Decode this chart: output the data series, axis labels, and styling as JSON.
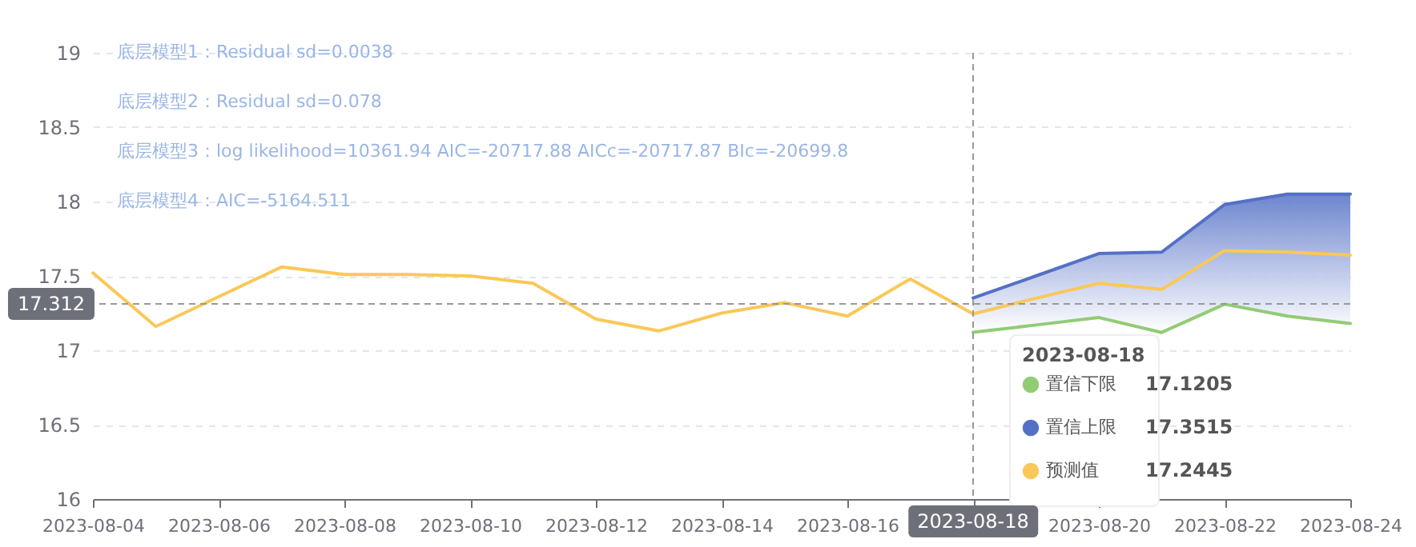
{
  "chart_data": {
    "type": "line",
    "annotations": [
      "底层模型1：Residual sd=0.0038",
      "底层模型2：Residual sd=0.078",
      "底层模型3：log likelihood=10361.94 AIC=-20717.88 AICc=-20717.87 BIc=-20699.8",
      "底层模型4：AIC=-5164.511",
      "17.1205",
      "17.3515",
      "17.2445"
    ],
    "legend_title": "2023-08-18",
    "series": [
      {
        "name": "置信下限",
        "color": "#91cc75",
        "x": [
          "2023-08-18",
          "2023-08-19",
          "2023-08-20",
          "2023-08-21",
          "2023-08-22",
          "2023-08-23",
          "2023-08-24"
        ],
        "values": [
          17.1205,
          17.17,
          17.22,
          17.12,
          17.31,
          17.23,
          17.18
        ]
      },
      {
        "name": "置信上限",
        "type": "area",
        "color": "#5470c6",
        "x": [
          "2023-08-18",
          "2023-08-19",
          "2023-08-20",
          "2023-08-21",
          "2023-08-22",
          "2023-08-23",
          "2023-08-24"
        ],
        "values": [
          17.3515,
          17.5,
          17.65,
          17.66,
          17.98,
          18.05,
          18.05
        ]
      },
      {
        "name": "预测值",
        "color": "#fac858",
        "x": [
          "2023-08-04",
          "2023-08-05",
          "2023-08-06",
          "2023-08-07",
          "2023-08-08",
          "2023-08-09",
          "2023-08-10",
          "2023-08-11",
          "2023-08-12",
          "2023-08-13",
          "2023-08-14",
          "2023-08-15",
          "2023-08-16",
          "2023-08-17",
          "2023-08-18",
          "2023-08-19",
          "2023-08-20",
          "2023-08-21",
          "2023-08-22",
          "2023-08-23",
          "2023-08-24"
        ],
        "values": [
          17.52,
          17.16,
          17.36,
          17.56,
          17.51,
          17.51,
          17.5,
          17.45,
          17.21,
          17.13,
          17.25,
          17.32,
          17.23,
          17.48,
          17.2445,
          17.35,
          17.45,
          17.41,
          17.67,
          17.66,
          17.64
        ]
      }
    ],
    "xlim": [
      "2023-08-04",
      "2023-08-24"
    ],
    "xticks": [
      "2023-08-04",
      "2023-08-06",
      "2023-08-08",
      "2023-08-10",
      "2023-08-12",
      "2023-08-14",
      "2023-08-16",
      "2023-08-18",
      "2023-08-20",
      "2023-08-22",
      "2023-08-24"
    ],
    "ylim": [
      16,
      19
    ],
    "yticks": [
      16,
      16.5,
      17,
      17.5,
      18,
      18.5,
      19
    ],
    "ref_lines": [
      {
        "axis": "x",
        "value": "2023-08-18",
        "label": "2023-08-18"
      },
      {
        "axis": "y",
        "value": 17.312,
        "label": "17.312"
      }
    ],
    "grid": "y",
    "legend": "bottom right",
    "marker": "none",
    "line_style": "solid"
  }
}
